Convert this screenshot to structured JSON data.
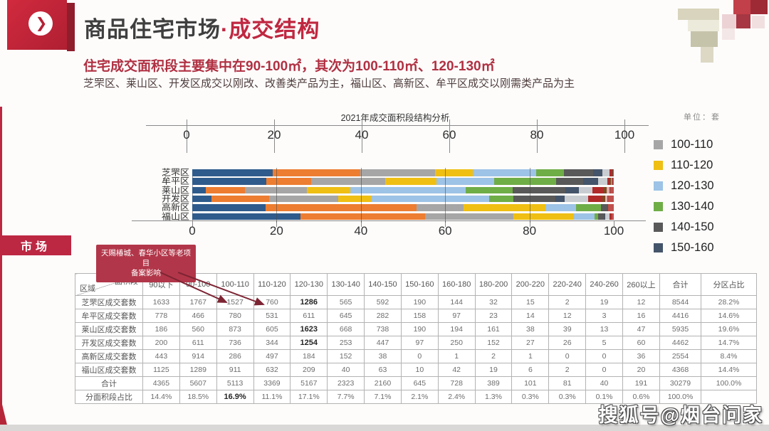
{
  "header": {
    "title_main": "商品住宅市场",
    "title_accent": "·成交结构",
    "subtitle": "住宅成交面积段主要集中在90-100㎡，其次为100-110㎡、120-130㎡",
    "subnote": "芝罘区、莱山区、开发区成交以刚改、改善类产品为主，福山区、高新区、牟平区成交以刚需类产品为主"
  },
  "side_tab": {
    "label": "市场"
  },
  "callout": {
    "line1": "天赐椿城、春华小区等老项目",
    "line2": "备案影响"
  },
  "watermark": "搜狐号@烟台问家",
  "chart_data": {
    "type": "bar",
    "orientation": "horizontal-stacked-100pct",
    "title": "2021年成交面积段结构分析",
    "unit_label": "单位：套",
    "axis_ticks": [
      0,
      20,
      40,
      60,
      80,
      100
    ],
    "categories": [
      "芝罘区",
      "牟平区",
      "莱山区",
      "开发区",
      "高新区",
      "福山区"
    ],
    "segments": [
      {
        "label": "90以下",
        "color": "#2f5b8c"
      },
      {
        "label": "90-100",
        "color": "#ed7d31"
      },
      {
        "label": "100-110",
        "color": "#a6a6a6"
      },
      {
        "label": "110-120",
        "color": "#efbf13"
      },
      {
        "label": "120-130",
        "color": "#9dc3e6"
      },
      {
        "label": "130-140",
        "color": "#6fad47"
      },
      {
        "label": "140-150",
        "color": "#595959"
      },
      {
        "label": "150-160",
        "color": "#44546a"
      },
      {
        "label": "160-180",
        "color": "#c9cdd2"
      },
      {
        "label": "180-200",
        "color": "#b02a2a"
      },
      {
        "label": "200-220",
        "color": "#7c4a21"
      },
      {
        "label": "220-240",
        "color": "#e0b0b0"
      },
      {
        "label": "240-260",
        "color": "#8b3a3a"
      },
      {
        "label": "260以上",
        "color": "#c0504d"
      }
    ],
    "series": [
      {
        "name": "芝罘区",
        "values": [
          1633,
          1767,
          1527,
          760,
          1286,
          565,
          592,
          190,
          144,
          32,
          15,
          2,
          19,
          12
        ]
      },
      {
        "name": "牟平区",
        "values": [
          778,
          466,
          780,
          531,
          611,
          645,
          282,
          158,
          97,
          23,
          14,
          12,
          3,
          16
        ]
      },
      {
        "name": "莱山区",
        "values": [
          186,
          560,
          873,
          605,
          1623,
          668,
          738,
          190,
          194,
          161,
          38,
          39,
          13,
          47
        ]
      },
      {
        "name": "开发区",
        "values": [
          200,
          611,
          736,
          344,
          1254,
          253,
          447,
          97,
          250,
          152,
          27,
          26,
          5,
          60
        ]
      },
      {
        "name": "高新区",
        "values": [
          443,
          914,
          286,
          497,
          184,
          152,
          38,
          0,
          1,
          2,
          1,
          0,
          0,
          36
        ]
      },
      {
        "name": "福山区",
        "values": [
          1125,
          1289,
          911,
          632,
          209,
          40,
          63,
          10,
          42,
          19,
          6,
          2,
          0,
          20
        ]
      }
    ],
    "legend_visible": [
      "100-110",
      "110-120",
      "120-130",
      "130-140",
      "140-150",
      "150-160"
    ],
    "legend_position": "right"
  },
  "table": {
    "corner": {
      "top": "面积段",
      "bottom": "区域"
    },
    "columns": [
      "90以下",
      "90-100",
      "100-110",
      "110-120",
      "120-130",
      "130-140",
      "140-150",
      "150-160",
      "160-180",
      "180-200",
      "200-220",
      "220-240",
      "240-260",
      "260以上",
      "合计",
      "分区占比"
    ],
    "rows": [
      {
        "label": "芝罘区成交套数",
        "values": [
          "1633",
          "1767",
          "1527",
          "760",
          "1286",
          "565",
          "592",
          "190",
          "144",
          "32",
          "15",
          "2",
          "19",
          "12",
          "8544",
          "28.2%"
        ]
      },
      {
        "label": "牟平区成交套数",
        "values": [
          "778",
          "466",
          "780",
          "531",
          "611",
          "645",
          "282",
          "158",
          "97",
          "23",
          "14",
          "12",
          "3",
          "16",
          "4416",
          "14.6%"
        ]
      },
      {
        "label": "莱山区成交套数",
        "values": [
          "186",
          "560",
          "873",
          "605",
          "1623",
          "668",
          "738",
          "190",
          "194",
          "161",
          "38",
          "39",
          "13",
          "47",
          "5935",
          "19.6%"
        ]
      },
      {
        "label": "开发区成交套数",
        "values": [
          "200",
          "611",
          "736",
          "344",
          "1254",
          "253",
          "447",
          "97",
          "250",
          "152",
          "27",
          "26",
          "5",
          "60",
          "4462",
          "14.7%"
        ]
      },
      {
        "label": "高新区成交套数",
        "values": [
          "443",
          "914",
          "286",
          "497",
          "184",
          "152",
          "38",
          "0",
          "1",
          "2",
          "1",
          "0",
          "0",
          "36",
          "2554",
          "8.4%"
        ]
      },
      {
        "label": "福山区成交套数",
        "values": [
          "1125",
          "1289",
          "911",
          "632",
          "209",
          "40",
          "63",
          "10",
          "42",
          "19",
          "6",
          "2",
          "0",
          "20",
          "4368",
          "14.4%"
        ]
      },
      {
        "label": "合计",
        "values": [
          "4365",
          "5607",
          "5113",
          "3369",
          "5167",
          "2323",
          "2160",
          "645",
          "728",
          "389",
          "101",
          "81",
          "40",
          "191",
          "30279",
          "100.0%"
        ]
      },
      {
        "label": "分面积段占比",
        "values": [
          "14.4%",
          "18.5%",
          "16.9%",
          "11.1%",
          "17.1%",
          "7.7%",
          "7.1%",
          "2.1%",
          "2.4%",
          "1.3%",
          "0.3%",
          "0.3%",
          "0.1%",
          "0.6%",
          "100.0%",
          ""
        ]
      }
    ],
    "bold_cells": [
      [
        0,
        4
      ],
      [
        2,
        4
      ],
      [
        3,
        4
      ],
      [
        7,
        2
      ]
    ]
  }
}
